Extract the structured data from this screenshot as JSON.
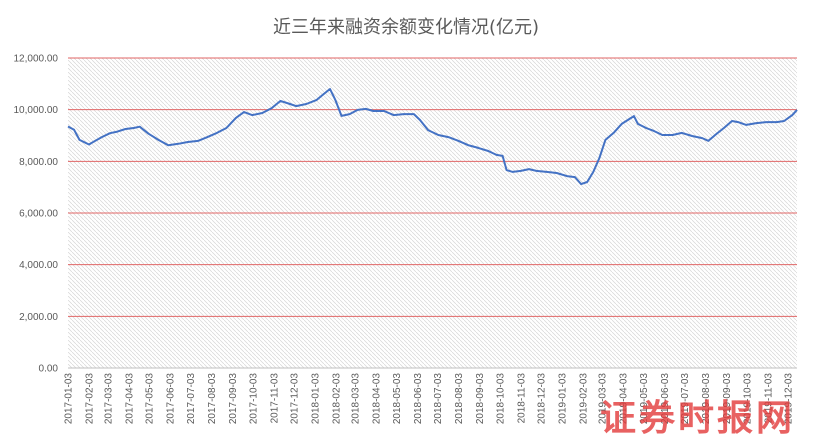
{
  "chart_data": {
    "type": "line",
    "title": "近三年来融资余额变化情况(亿元)",
    "xlabel": "",
    "ylabel": "",
    "ylim": [
      0,
      12000
    ],
    "yticks": [
      0,
      2000,
      4000,
      6000,
      8000,
      10000,
      12000
    ],
    "y_tick_labels": [
      "0.00",
      "2,000.00",
      "4,000.00",
      "6,000.00",
      "8,000.00",
      "10,000.00",
      "12,000.00"
    ],
    "xlim": [
      "2017-01-03",
      "2019-12-16"
    ],
    "x_tick_labels": [
      "2017-01-03",
      "2017-02-03",
      "2017-03-03",
      "2017-04-03",
      "2017-05-03",
      "2017-06-03",
      "2017-07-03",
      "2017-08-03",
      "2017-09-03",
      "2017-10-03",
      "2017-11-03",
      "2017-12-03",
      "2018-01-03",
      "2018-02-03",
      "2018-03-03",
      "2018-04-03",
      "2018-05-03",
      "2018-06-03",
      "2018-07-03",
      "2018-08-03",
      "2018-09-03",
      "2018-10-03",
      "2018-11-03",
      "2018-12-03",
      "2019-01-03",
      "2019-02-03",
      "2019-03-03",
      "2019-04-03",
      "2019-05-03",
      "2019-06-03",
      "2019-07-03",
      "2019-08-03",
      "2019-09-03",
      "2019-10-03",
      "2019-11-03",
      "2019-12-03"
    ],
    "grid": true,
    "legend": "none",
    "colors": {
      "line": "#4472C4",
      "grid": "#E06666",
      "axis": "#BFBFBF",
      "hatch": "#D6D6D6"
    },
    "series": [
      {
        "x": [
          "2017-01-03",
          "2017-01-12",
          "2017-01-20",
          "2017-02-03",
          "2017-02-10",
          "2017-02-22",
          "2017-03-06",
          "2017-03-17",
          "2017-03-29",
          "2017-04-10",
          "2017-04-19",
          "2017-05-02",
          "2017-05-16",
          "2017-05-31",
          "2017-06-15",
          "2017-06-29",
          "2017-07-14",
          "2017-07-28",
          "2017-08-11",
          "2017-08-25",
          "2017-09-08",
          "2017-09-20",
          "2017-10-02",
          "2017-10-17",
          "2017-10-31",
          "2017-11-13",
          "2017-11-27",
          "2017-12-06",
          "2017-12-21",
          "2018-01-05",
          "2018-01-16",
          "2018-01-25",
          "2018-02-02",
          "2018-02-11",
          "2018-02-23",
          "2018-03-07",
          "2018-03-19",
          "2018-03-30",
          "2018-04-15",
          "2018-04-29",
          "2018-05-14",
          "2018-05-29",
          "2018-06-07",
          "2018-06-19",
          "2018-07-04",
          "2018-07-19",
          "2018-08-03",
          "2018-08-17",
          "2018-09-01",
          "2018-09-16",
          "2018-09-28",
          "2018-10-07",
          "2018-10-13",
          "2018-10-22",
          "2018-11-03",
          "2018-11-15",
          "2018-11-26",
          "2018-12-11",
          "2018-12-26",
          "2019-01-10",
          "2019-01-22",
          "2019-01-31",
          "2019-02-09",
          "2019-02-18",
          "2019-02-27",
          "2019-03-08",
          "2019-03-20",
          "2019-04-01",
          "2019-04-10",
          "2019-04-19",
          "2019-04-25",
          "2019-05-07",
          "2019-05-19",
          "2019-05-31",
          "2019-06-15",
          "2019-06-29",
          "2019-07-14",
          "2019-07-29",
          "2019-08-07",
          "2019-08-19",
          "2019-08-30",
          "2019-09-11",
          "2019-09-20",
          "2019-10-02",
          "2019-10-17",
          "2019-11-01",
          "2019-11-16",
          "2019-11-27",
          "2019-12-09",
          "2019-12-16"
        ],
        "values": [
          9350,
          9220,
          8830,
          8650,
          8760,
          8940,
          9090,
          9150,
          9250,
          9290,
          9340,
          9070,
          8840,
          8620,
          8680,
          8750,
          8790,
          8940,
          9100,
          9290,
          9680,
          9910,
          9790,
          9870,
          10060,
          10340,
          10220,
          10140,
          10220,
          10370,
          10610,
          10800,
          10370,
          9760,
          9830,
          9990,
          10030,
          9950,
          9950,
          9790,
          9830,
          9830,
          9600,
          9210,
          9020,
          8940,
          8790,
          8630,
          8520,
          8400,
          8250,
          8210,
          7660,
          7590,
          7630,
          7700,
          7630,
          7590,
          7550,
          7430,
          7390,
          7120,
          7200,
          7590,
          8130,
          8830,
          9100,
          9450,
          9600,
          9750,
          9450,
          9290,
          9170,
          9020,
          9020,
          9100,
          8980,
          8900,
          8790,
          9060,
          9290,
          9560,
          9520,
          9410,
          9480,
          9520,
          9520,
          9560,
          9790,
          9990
        ]
      }
    ]
  },
  "watermark": "证券时报网",
  "watermark_color": "#E23A3A"
}
